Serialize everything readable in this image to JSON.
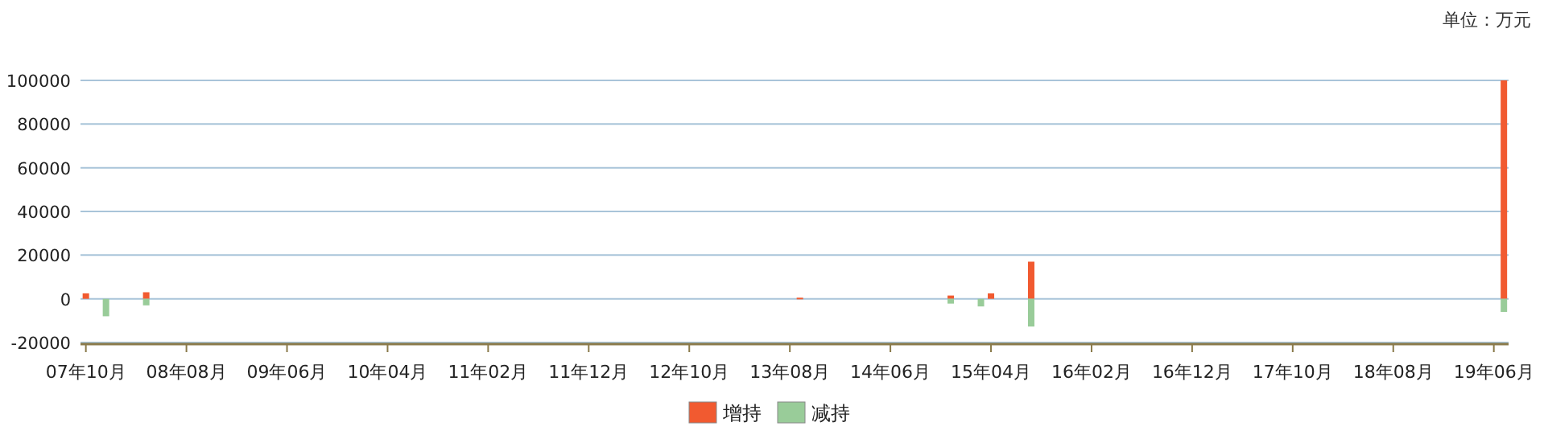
{
  "chart_data": {
    "type": "bar",
    "annotations": [
      "单位：万元"
    ],
    "series": [
      {
        "name": "增持",
        "color": "#f15a30",
        "x": [
          "2007-10",
          "2008-04",
          "2013-09",
          "2014-12",
          "2015-04",
          "2015-08",
          "2019-07"
        ],
        "values": [
          2500,
          3000,
          500,
          1500,
          2500,
          17000,
          100000
        ]
      },
      {
        "name": "减持",
        "color": "#99cc99",
        "x": [
          "2007-12",
          "2008-04",
          "2014-12",
          "2015-03",
          "2015-08",
          "2019-07"
        ],
        "values": [
          -8000,
          -3000,
          -2200,
          -3500,
          -12700,
          -6000
        ]
      }
    ],
    "xlim": [
      "2007-09-15",
      "2019-07-15"
    ],
    "xticks": [
      {
        "value": "2007-10",
        "label": "07年10月"
      },
      {
        "value": "2008-08",
        "label": "08年08月"
      },
      {
        "value": "2009-06",
        "label": "09年06月"
      },
      {
        "value": "2010-04",
        "label": "10年04月"
      },
      {
        "value": "2011-02",
        "label": "11年02月"
      },
      {
        "value": "2011-12",
        "label": "11年12月"
      },
      {
        "value": "2012-10",
        "label": "12年10月"
      },
      {
        "value": "2013-08",
        "label": "13年08月"
      },
      {
        "value": "2014-06",
        "label": "14年06月"
      },
      {
        "value": "2015-04",
        "label": "15年04月"
      },
      {
        "value": "2016-02",
        "label": "16年02月"
      },
      {
        "value": "2016-12",
        "label": "16年12月"
      },
      {
        "value": "2017-10",
        "label": "17年10月"
      },
      {
        "value": "2018-08",
        "label": "18年08月"
      },
      {
        "value": "2019-06",
        "label": "19年06月"
      }
    ],
    "ylim": [
      -20000,
      100000
    ],
    "yticks": [
      -20000,
      0,
      20000,
      40000,
      60000,
      80000,
      100000
    ],
    "grid": "y",
    "legend": "bottom"
  }
}
